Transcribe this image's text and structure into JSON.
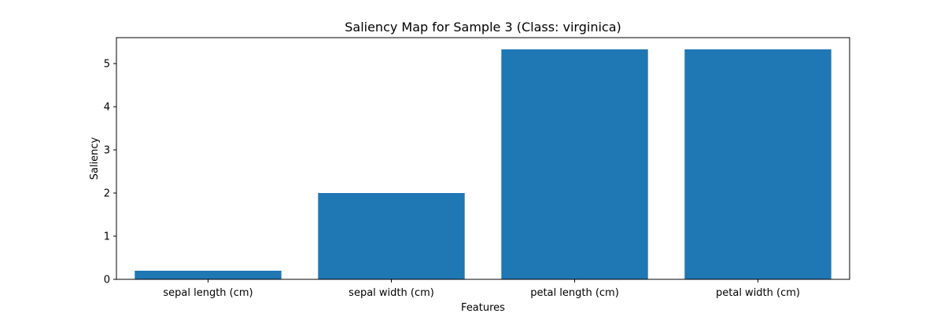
{
  "chart_data": {
    "type": "bar",
    "title": "Saliency Map for Sample 3 (Class: virginica)",
    "xlabel": "Features",
    "ylabel": "Saliency",
    "categories": [
      "sepal length (cm)",
      "sepal width (cm)",
      "petal length (cm)",
      "petal width (cm)"
    ],
    "values": [
      0.2,
      2.0,
      5.33,
      5.33
    ],
    "ylim": [
      0,
      5.6
    ],
    "yticks": [
      0,
      1,
      2,
      3,
      4,
      5
    ],
    "ytick_labels": [
      "0",
      "1",
      "2",
      "3",
      "4",
      "5"
    ],
    "bar_color": "#1f77b4",
    "grid": false,
    "legend": "none"
  }
}
